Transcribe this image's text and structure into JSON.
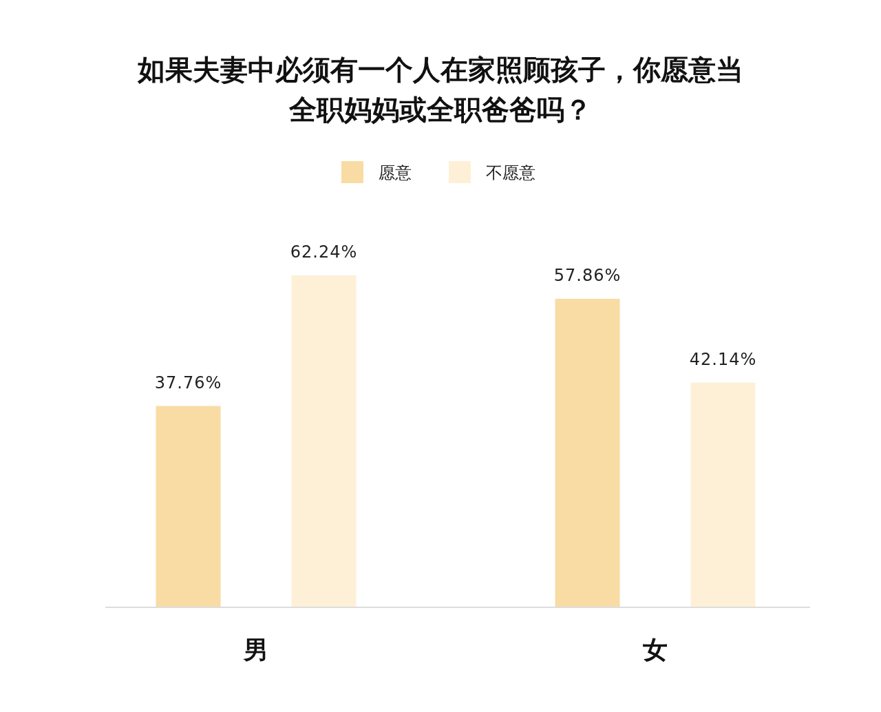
{
  "chart_data": {
    "type": "bar",
    "title": "如果夫妻中必须有一个人在家照顾孩子，你愿意当全职妈妈或全职爸爸吗？",
    "categories": [
      "男",
      "女"
    ],
    "series": [
      {
        "name": "愿意",
        "color": "#f8dca4",
        "values": [
          37.76,
          57.86
        ],
        "value_labels": [
          "37.76%",
          "57.86%"
        ]
      },
      {
        "name": "不愿意",
        "color": "#fdf0d6",
        "values": [
          62.24,
          42.14
        ],
        "value_labels": [
          "62.24%",
          "42.14%"
        ]
      }
    ],
    "legend": "top",
    "ylim": [
      0,
      62.24
    ]
  }
}
